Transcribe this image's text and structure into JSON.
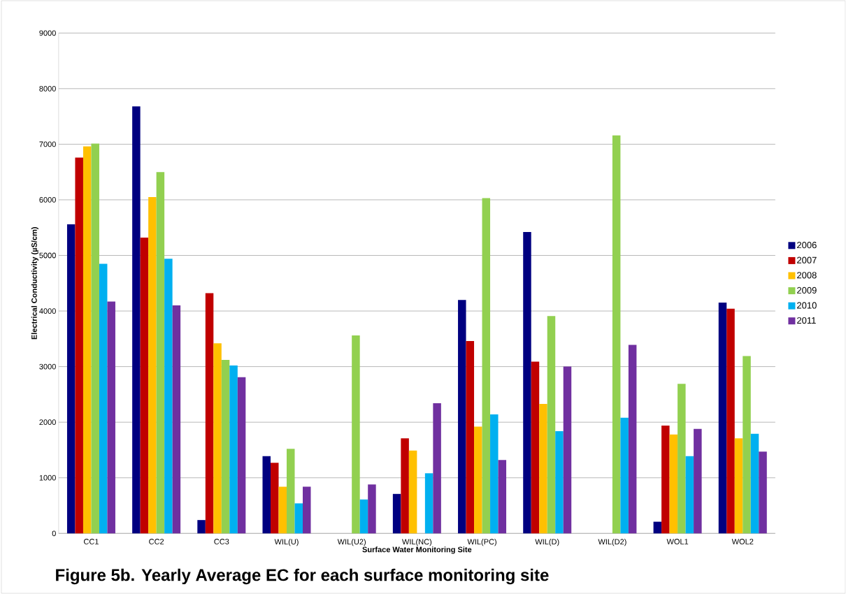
{
  "chart_data": {
    "type": "bar",
    "title": "Figure 5b. Yearly Average EC for each surface monitoring site",
    "xlabel": "Surface Water Monitoring Site",
    "ylabel": "Electrical Conductivity (µS/cm)",
    "categories": [
      "CC1",
      "CC2",
      "CC3",
      "WIL(U)",
      "WIL(U2)",
      "WIL(NC)",
      "WIL(PC)",
      "WIL(D)",
      "WIL(D2)",
      "WOL1",
      "WOL2"
    ],
    "series": [
      {
        "name": "2006",
        "color": "#000080",
        "values": [
          5560,
          7680,
          240,
          1390,
          null,
          710,
          4200,
          5420,
          null,
          210,
          4150
        ]
      },
      {
        "name": "2007",
        "color": "#c00000",
        "values": [
          6760,
          5320,
          4320,
          1270,
          null,
          1710,
          3460,
          3090,
          null,
          1940,
          4040
        ]
      },
      {
        "name": "2008",
        "color": "#ffc000",
        "values": [
          6960,
          6050,
          3420,
          840,
          null,
          1490,
          1920,
          2330,
          null,
          1780,
          1710
        ]
      },
      {
        "name": "2009",
        "color": "#92d050",
        "values": [
          7010,
          6500,
          3120,
          1520,
          3560,
          null,
          6030,
          3910,
          7160,
          2690,
          3190
        ]
      },
      {
        "name": "2010",
        "color": "#00b0f0",
        "values": [
          4850,
          4940,
          3020,
          540,
          610,
          1080,
          2140,
          1840,
          2080,
          1390,
          1790
        ]
      },
      {
        "name": "2011",
        "color": "#7030a0",
        "values": [
          4170,
          4100,
          2810,
          840,
          880,
          2340,
          1320,
          3000,
          3390,
          1880,
          1470
        ]
      }
    ],
    "ylim": [
      0,
      9000
    ],
    "yticks": [
      0,
      1000,
      2000,
      3000,
      4000,
      5000,
      6000,
      7000,
      8000,
      9000
    ],
    "grid": "y",
    "legend": "right"
  }
}
